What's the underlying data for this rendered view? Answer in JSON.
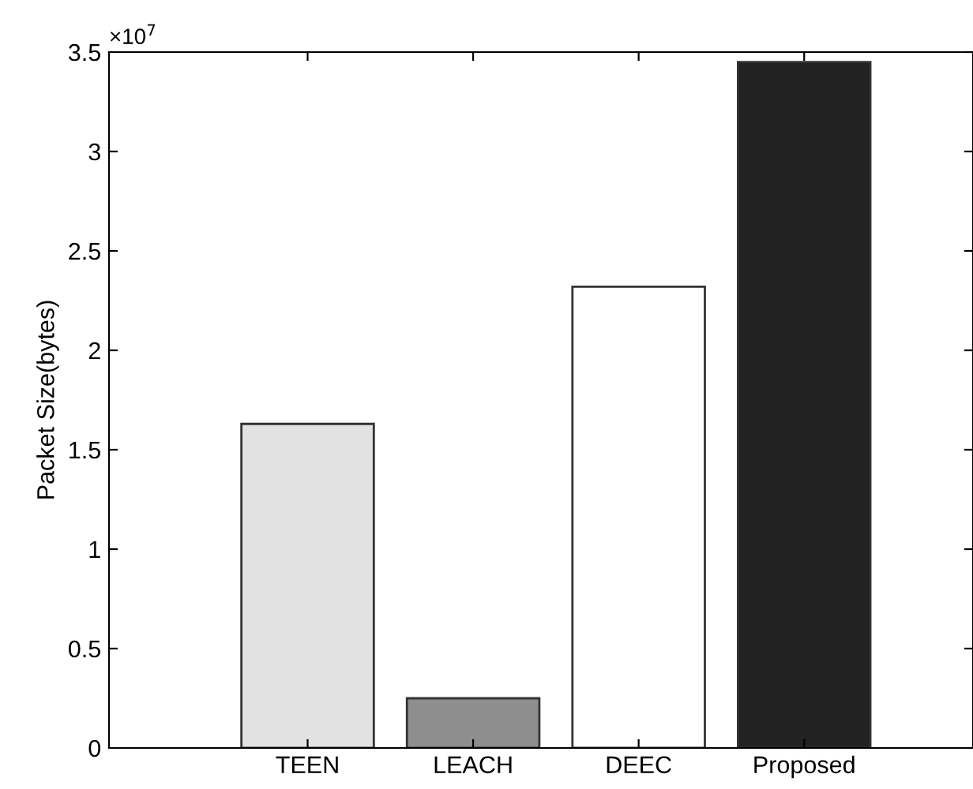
{
  "chart_data": {
    "type": "bar",
    "ylabel": "Packet Size(bytes)",
    "categories": [
      "TEEN",
      "LEACH",
      "DEEC",
      "Proposed"
    ],
    "values": [
      1.63,
      0.25,
      2.32,
      3.45
    ],
    "colors": [
      "#e2e2e2",
      "#8e8e8e",
      "#ffffff",
      "#222222"
    ],
    "ylim": [
      0,
      3.5
    ],
    "yticks": [
      0,
      0.5,
      1,
      1.5,
      2,
      2.5,
      3,
      3.5
    ],
    "annotations": [
      "×10$^{7}$"
    ]
  }
}
